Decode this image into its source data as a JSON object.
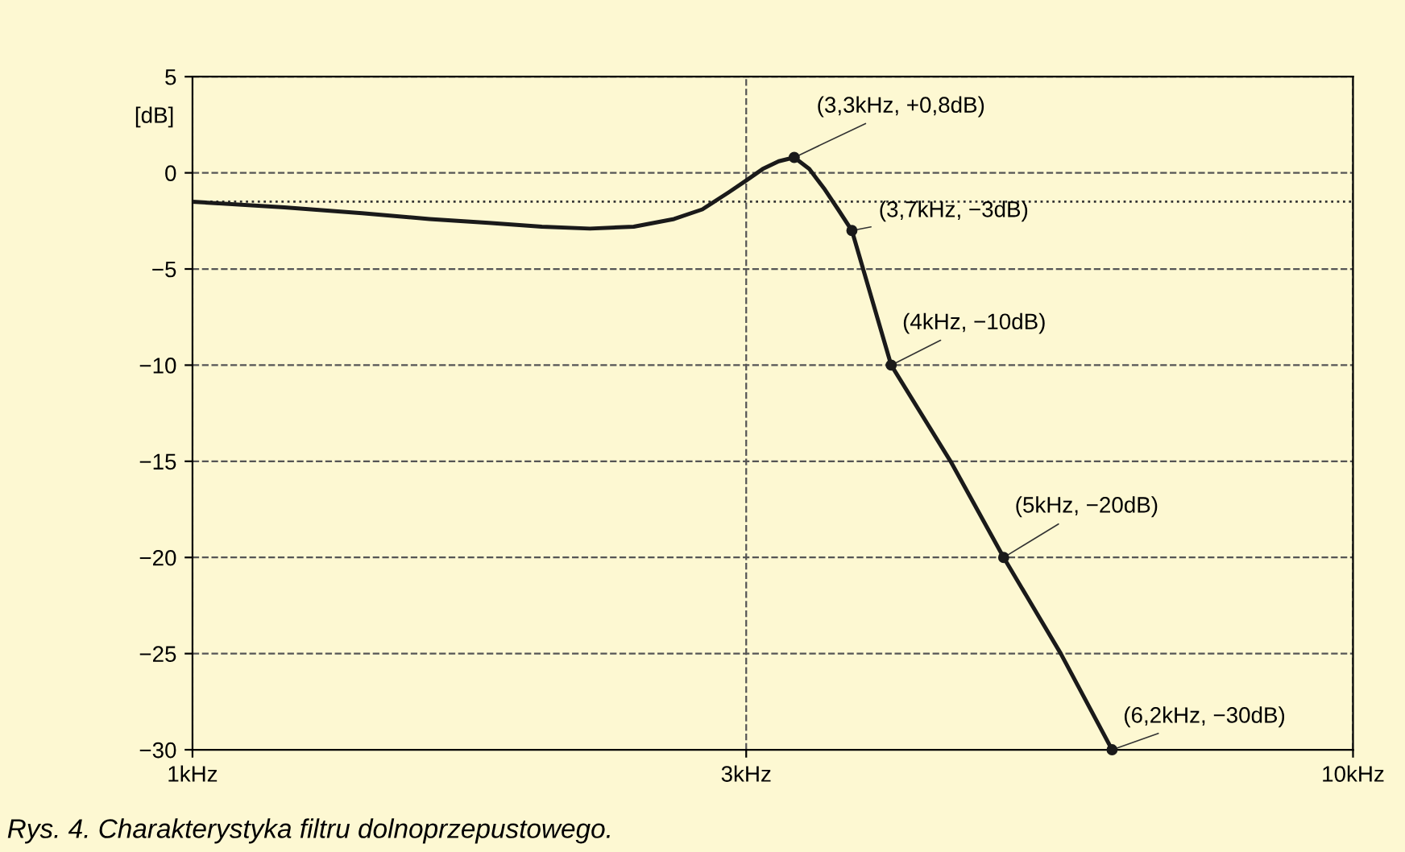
{
  "chart_data": {
    "type": "line",
    "ylabel": "[dB]",
    "log": "x",
    "xlim": [
      1,
      10
    ],
    "xticks": [
      {
        "value": 1,
        "label": "1kHz"
      },
      {
        "value": 3,
        "label": "3kHz"
      },
      {
        "value": 10,
        "label": "10kHz"
      }
    ],
    "ylim": [
      -30,
      5
    ],
    "yticks": [
      -30,
      -25,
      -20,
      -15,
      -10,
      -5,
      0,
      5
    ],
    "grid": true,
    "series": [
      {
        "color": "#1a1a1a",
        "marker": "none",
        "x": [
          1,
          1.2,
          1.4,
          1.6,
          1.8,
          2,
          2.2,
          2.4,
          2.6,
          2.75,
          2.9,
          3,
          3.1,
          3.2,
          3.3,
          3.4,
          3.5,
          3.6,
          3.7,
          4,
          4.5,
          5,
          5.6,
          6.2
        ],
        "values": [
          -1.5,
          -1.8,
          -2.1,
          -2.4,
          -2.6,
          -2.8,
          -2.9,
          -2.8,
          -2.4,
          -1.9,
          -1.0,
          -0.4,
          0.2,
          0.6,
          0.8,
          0.2,
          -0.8,
          -1.9,
          -3,
          -10,
          -15,
          -20,
          -25,
          -30
        ]
      },
      {
        "type": "scatter",
        "color": "#1a1a1a",
        "marker": "circle",
        "x": [
          3.3,
          3.7,
          4,
          5,
          6.2
        ],
        "values": [
          0.8,
          -3,
          -10,
          -20,
          -30
        ]
      }
    ],
    "ref_lines": [
      {
        "axis": "y",
        "value": -1.5,
        "label": null,
        "color": "#333333",
        "line_style": "dotted"
      }
    ],
    "annotations": [
      {
        "text": "(3,3kHz, +0,8dB)",
        "x": 3.3,
        "y": 0.8
      },
      {
        "text": "(3,7kHz, −3dB)",
        "x": 3.7,
        "y": -3
      },
      {
        "text": "(4kHz, −10dB)",
        "x": 4,
        "y": -10
      },
      {
        "text": "(5kHz, −20dB)",
        "x": 5,
        "y": -20
      },
      {
        "text": "(6,2kHz, −30dB)",
        "x": 6.2,
        "y": -30
      },
      "Rys. 4. Charakterystyka filtru dolnoprzepustowego."
    ]
  }
}
